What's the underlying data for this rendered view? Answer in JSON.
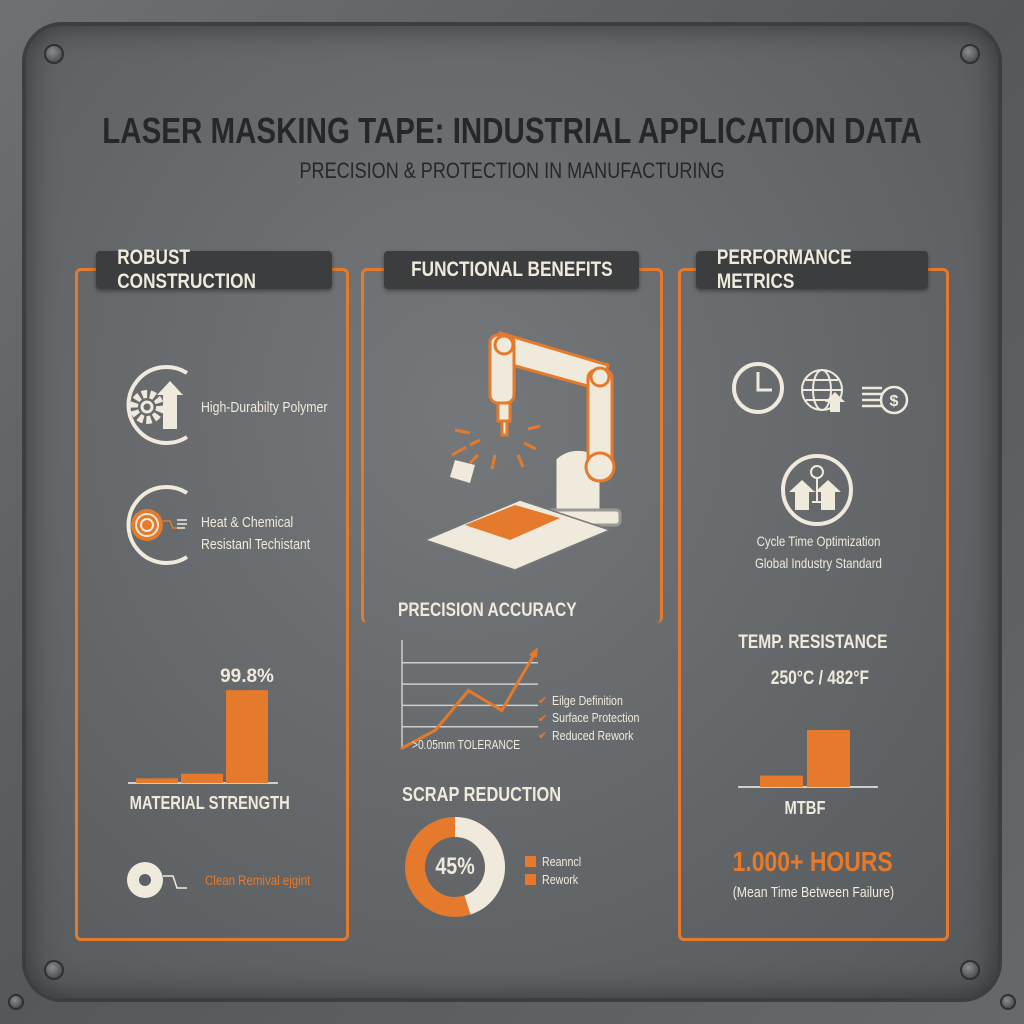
{
  "header": {
    "title": "LASER MASKING TAPE: INDUSTRIAL APPLICATION DATA",
    "subtitle": "PRECISION & PROTECTION IN MANUFACTURING"
  },
  "colors": {
    "accent": "#e57a2c",
    "cream": "#efeadb",
    "background": "#636669",
    "tab": "#3b3d3f"
  },
  "left": {
    "heading": "ROBUST CONSTRUCTION",
    "features": [
      {
        "icon": "gear-arrow-icon",
        "label": "High-Durabilty Polymer"
      },
      {
        "icon": "tape-roll-icon",
        "label_line1": "Heat & Chemical",
        "label_line2": "Resistanl Techistant"
      }
    ],
    "clean_removal": {
      "icon": "tape-icon",
      "label": "Clean Remival ejgint"
    }
  },
  "middle": {
    "heading": "FUNCTIONAL BENEFITS",
    "illustration": "robot-laser-arm-icon",
    "precision_heading": "PRECISION ACCURACY",
    "checklist": [
      "Eilge Definition",
      "Surface Protection",
      "Reduced Rework"
    ],
    "scrap_heading": "SCRAP REDUCTION"
  },
  "right": {
    "heading": "PERFORMANCE METRICS",
    "icons": [
      "clock-icon",
      "globe-upload-icon",
      "coins-dollar-icon",
      "arrows-up-circle-icon"
    ],
    "line1": "Cycle Time Optimization",
    "line2": "Global Industry Standard",
    "temp_heading": "TEMP. RESISTANCE",
    "temp_value": "250°C / 482°F",
    "hours": "1.000+ HOURS",
    "hours_note": "(Mean Time Between Failure)"
  },
  "chart_data": [
    {
      "type": "bar",
      "title": "",
      "xlabel": "MATERIAL STRENGTH",
      "values": [
        5,
        10,
        99.8
      ],
      "data_labels": [
        "",
        "",
        "99.8%"
      ],
      "ylim": [
        0,
        100
      ]
    },
    {
      "type": "line",
      "title": "",
      "annotation": ">0.05mm TOLERANCE",
      "x": [
        0,
        1,
        2,
        3,
        4
      ],
      "values": [
        0,
        0.8,
        2.6,
        1.7,
        4.3
      ],
      "ylim": [
        0,
        4
      ],
      "grid": true
    },
    {
      "type": "pie",
      "donut": true,
      "center_label": "45%",
      "values": [
        45,
        55
      ],
      "legend": [
        "Reanncl",
        "Rework"
      ],
      "legend_placement": "right"
    },
    {
      "type": "bar",
      "title": "",
      "xlabel": "MTBF",
      "values": [
        20,
        100
      ],
      "ylim": [
        0,
        100
      ]
    }
  ]
}
